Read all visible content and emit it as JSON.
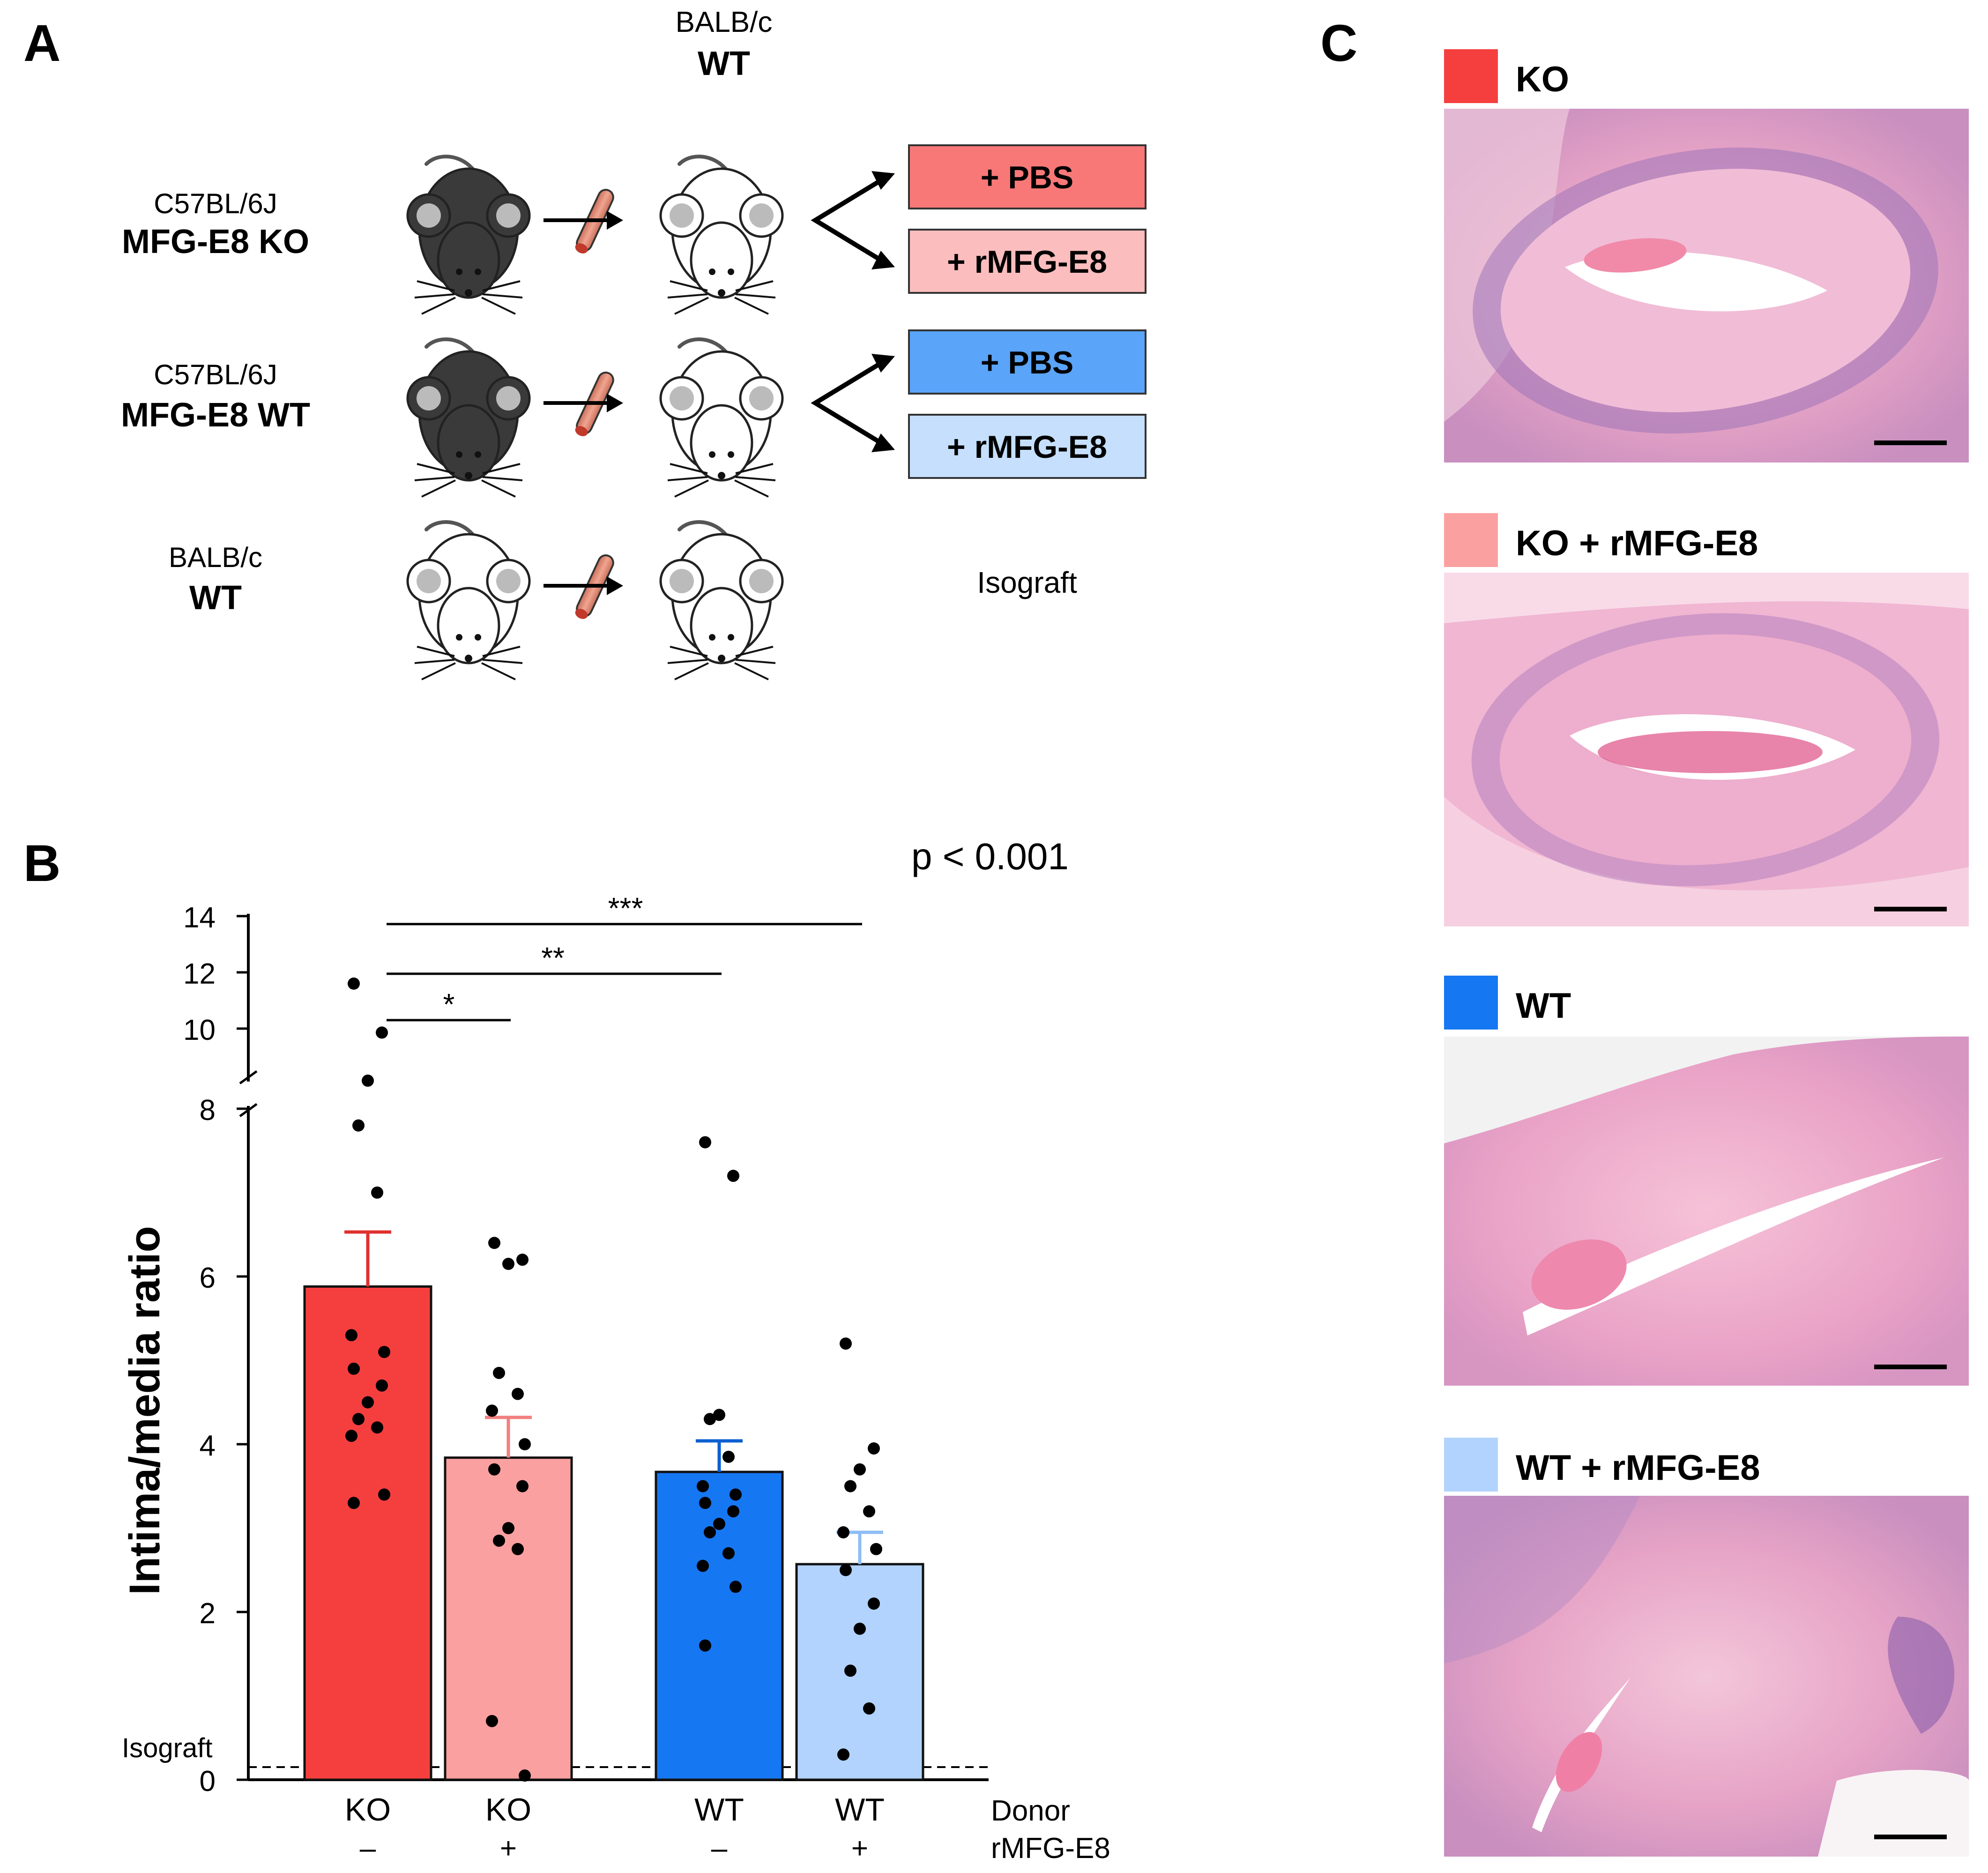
{
  "panel_labels": {
    "a": "A",
    "b": "B",
    "c": "C"
  },
  "panel_a": {
    "recipient": {
      "strain": "BALB/c",
      "genotype": "WT"
    },
    "rows": [
      {
        "strain": "C57BL/6J",
        "genotype": "MFG-E8 KO",
        "treatments": [
          "+ PBS",
          "+ rMFG-E8"
        ]
      },
      {
        "strain": "C57BL/6J",
        "genotype": "MFG-E8 WT",
        "treatments": [
          "+ PBS",
          "+ rMFG-E8"
        ]
      },
      {
        "strain": "BALB/c",
        "genotype": "WT",
        "outcome": "Isograft"
      }
    ]
  },
  "chart_data": {
    "type": "bar",
    "ylabel": "Intima/media ratio",
    "p_value_text": "p < 0.001",
    "yticks_lower": [
      "0",
      "2",
      "4",
      "6",
      "8"
    ],
    "yticks_upper": [
      "10",
      "12",
      "14"
    ],
    "axis_break_between": [
      8,
      10
    ],
    "isograft_label": "Isograft",
    "isograft_value": 0.15,
    "categories": [
      {
        "donor": "KO",
        "rmfg": "–",
        "mean": 5.88,
        "sem": 0.65,
        "color": "#f53f3f",
        "points": [
          11.6,
          9.9,
          8.7,
          7.8,
          7.0,
          5.3,
          5.1,
          4.9,
          4.7,
          4.5,
          4.3,
          4.2,
          4.1,
          3.4,
          3.3
        ]
      },
      {
        "donor": "KO",
        "rmfg": "+",
        "mean": 3.84,
        "sem": 0.48,
        "color": "#fba0a0",
        "points": [
          6.4,
          6.2,
          6.15,
          4.85,
          4.6,
          4.4,
          4.0,
          3.7,
          3.5,
          3.0,
          2.85,
          2.75,
          0.7,
          0.05
        ]
      },
      {
        "donor": "WT",
        "rmfg": "–",
        "mean": 3.67,
        "sem": 0.37,
        "color": "#1677f2",
        "points": [
          7.6,
          7.2,
          4.35,
          4.3,
          3.85,
          3.5,
          3.4,
          3.3,
          3.2,
          3.05,
          2.95,
          2.7,
          2.55,
          2.3,
          1.6
        ]
      },
      {
        "donor": "WT",
        "rmfg": "+",
        "mean": 2.57,
        "sem": 0.38,
        "color": "#b1d3fd",
        "points": [
          5.2,
          3.95,
          3.7,
          3.5,
          3.2,
          2.95,
          2.75,
          2.5,
          2.1,
          1.8,
          1.3,
          0.85,
          0.3
        ]
      }
    ],
    "x_row_labels": [
      "Donor",
      "rMFG-E8"
    ],
    "significance": [
      {
        "from": 0,
        "to": 1,
        "label": "*"
      },
      {
        "from": 0,
        "to": 3,
        "label": "**"
      },
      {
        "from": 0,
        "to": 4,
        "label": "***"
      }
    ]
  },
  "panel_c": {
    "items": [
      {
        "label": "KO",
        "color": "#f53f3f"
      },
      {
        "label": "KO + rMFG-E8",
        "color": "#fba0a0"
      },
      {
        "label": "WT",
        "color": "#1677f2"
      },
      {
        "label": "WT + rMFG-E8",
        "color": "#b1d3fd"
      }
    ]
  }
}
